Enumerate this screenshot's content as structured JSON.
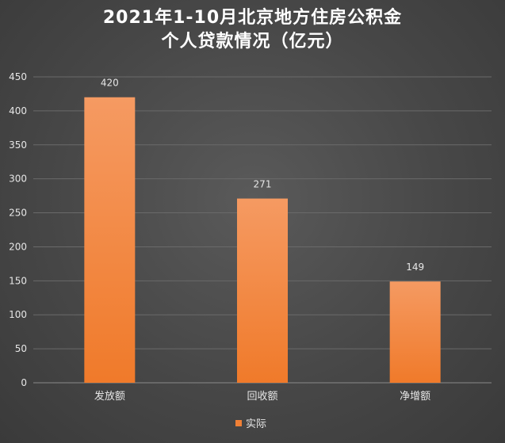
{
  "chart_data": {
    "type": "bar",
    "title_lines": [
      "2021年1-10月北京地方住房公积金",
      "个人贷款情况（亿元）"
    ],
    "categories": [
      "发放额",
      "回收额",
      "净增额"
    ],
    "series": [
      {
        "name": "实际",
        "values": [
          420,
          271,
          149
        ]
      }
    ],
    "ylim": [
      0,
      450
    ],
    "yticks": [
      0,
      50,
      100,
      150,
      200,
      250,
      300,
      350,
      400,
      450
    ],
    "grid": true,
    "legend_position": "bottom",
    "colors": {
      "bar_top": "#f59a62",
      "bar_bottom": "#f07a2a",
      "legend_swatch": "#f08036",
      "grid": "#6a6a6a",
      "axis": "#8a8a8a",
      "text": "#e6e6e6",
      "title": "#ffffff"
    }
  }
}
